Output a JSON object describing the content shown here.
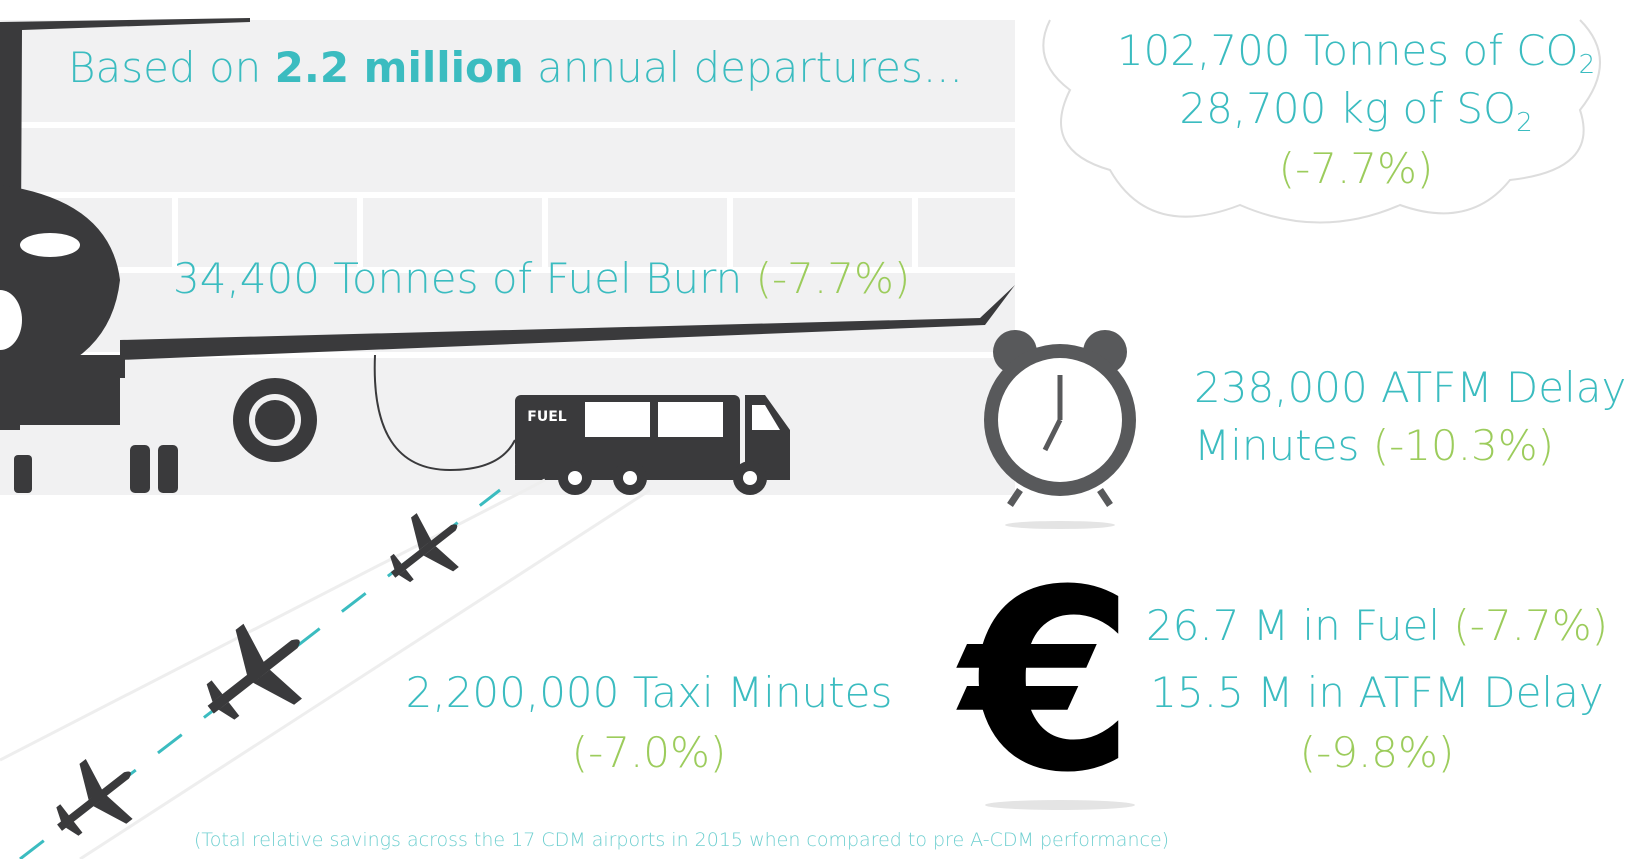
{
  "header": {
    "prefix": "Based on",
    "highlight": "2.2 million",
    "suffix": "annual departures..."
  },
  "emissions": {
    "co2": {
      "text": "102,700 Tonnes of CO",
      "subscript": "2"
    },
    "so2": {
      "text": "28,700 kg of SO",
      "subscript": "2"
    },
    "change": "(-7.7%)"
  },
  "fuel": {
    "text": "34,400 Tonnes of Fuel Burn",
    "change": "(-7.7%)",
    "truck_label": "FUEL"
  },
  "atfm": {
    "line1": "238,000 ATFM Delay",
    "line2": "Minutes",
    "change": "(-10.3%)"
  },
  "taxi": {
    "text": "2,200,000 Taxi Minutes",
    "change": "(-7.0%)"
  },
  "savings": {
    "symbol": "€",
    "fuel": {
      "text": "26.7 M in Fuel",
      "change": "(-7.7%)"
    },
    "atfm": {
      "text": "15.5 M in ATFM Delay",
      "change": "(-9.8%)"
    }
  },
  "footnote": "(Total relative savings across the 17 CDM airports in 2015 when compared to pre A-CDM performance)"
}
